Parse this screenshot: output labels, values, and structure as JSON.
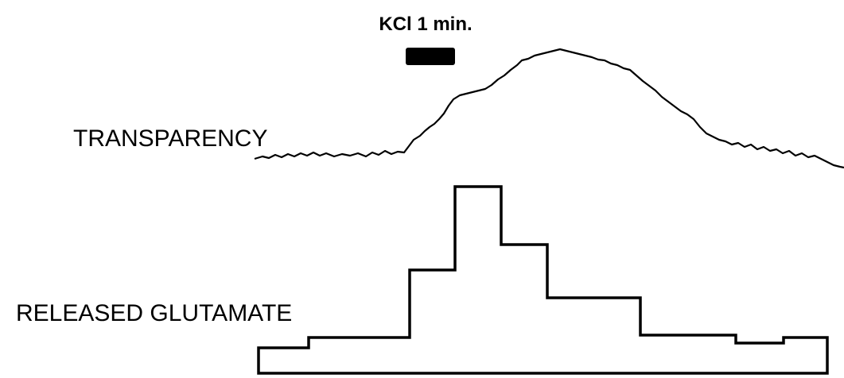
{
  "stimulus": {
    "label": "KCl 1 min."
  },
  "traces": [
    {
      "label": "TRANSPARENCY"
    },
    {
      "label": "RELEASED GLUTAMATE"
    }
  ]
}
